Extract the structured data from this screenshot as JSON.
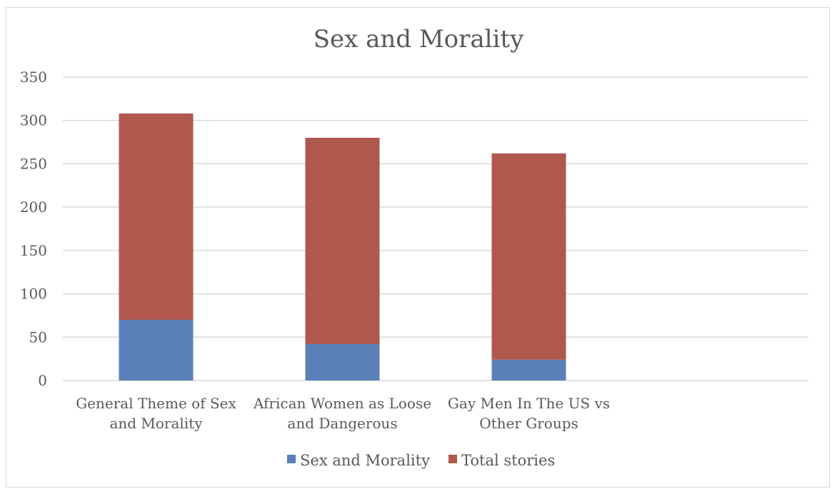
{
  "chart_data": {
    "type": "bar",
    "stacked": true,
    "title": "Sex and Morality",
    "categories": [
      [
        "General Theme of Sex",
        "and Morality"
      ],
      [
        "African Women as Loose",
        "and Dangerous"
      ],
      [
        "Gay Men In The US vs",
        "Other Groups"
      ]
    ],
    "series": [
      {
        "name": "Sex and Morality",
        "color": "#5b80b9",
        "values": [
          70,
          42,
          24
        ]
      },
      {
        "name": "Total stories",
        "color": "#b0574e",
        "values": [
          238,
          238,
          238
        ]
      }
    ],
    "ylim": [
      0,
      350
    ],
    "yticks": [
      0,
      50,
      100,
      150,
      200,
      250,
      300,
      350
    ],
    "grid": true,
    "legend_position": "bottom"
  }
}
